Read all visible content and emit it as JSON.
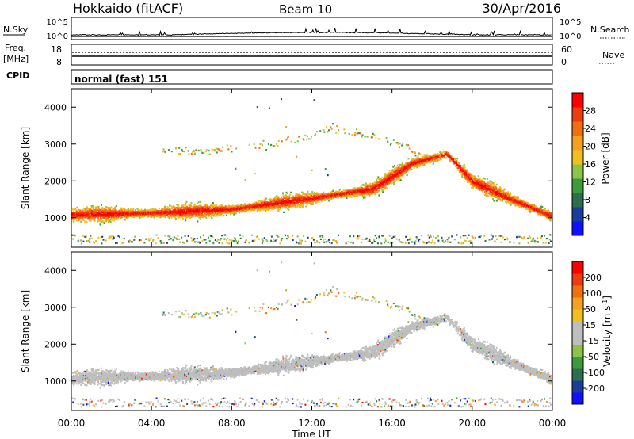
{
  "header": {
    "station": "Hokkaido (fitACF)",
    "beam": "Beam 10",
    "date": "30/Apr/2016"
  },
  "top_panels": {
    "nsky_label": "N.Sky",
    "nsky_tick_top": "10^5",
    "nsky_tick_bottom": "10^0",
    "nsearch_label": "N.Search",
    "nsearch_tick_top": "10^5",
    "nsearch_tick_bottom": "10^0",
    "freq_label": "Freq.",
    "freq_unit": "[MHz]",
    "freq_ticks": [
      "18",
      "8"
    ],
    "nave_label": "Nave",
    "nave_ticks": [
      "60",
      "0"
    ],
    "cpid_label": "CPID",
    "cpid_value": "normal (fast) 151"
  },
  "chart_data": [
    {
      "type": "heatmap",
      "name": "power",
      "ylabel": "Slant Range [km]",
      "ylim": [
        200,
        4500
      ],
      "yticks": [
        1000,
        2000,
        3000,
        4000
      ],
      "xlim": [
        0,
        24
      ],
      "xticks": [
        "00:00",
        "04:00",
        "08:00",
        "12:00",
        "16:00",
        "20:00",
        "00:00"
      ],
      "xlabel": "Time UT",
      "colorbar": {
        "label": "Power [dB]",
        "ticks": [
          "4",
          "8",
          "12",
          "16",
          "20",
          "24",
          "28"
        ],
        "colors": [
          "#1010ff",
          "#1c3c9c",
          "#2d6e4e",
          "#3d9a3d",
          "#8cc44a",
          "#f0c020",
          "#f5a020",
          "#f07010",
          "#ee3c10",
          "#ff0000"
        ]
      },
      "main_band_km": [
        [
          0,
          1100
        ],
        [
          4,
          1150
        ],
        [
          8,
          1250
        ],
        [
          12,
          1550
        ],
        [
          15,
          1800
        ],
        [
          17,
          2500
        ],
        [
          18.7,
          2750
        ],
        [
          20,
          2000
        ],
        [
          22,
          1500
        ],
        [
          24,
          1050
        ]
      ],
      "upper_echo_km": [
        [
          5,
          2850
        ],
        [
          8,
          2850
        ],
        [
          11,
          3100
        ],
        [
          13,
          3450
        ],
        [
          16,
          3100
        ],
        [
          18,
          2600
        ]
      ]
    },
    {
      "type": "heatmap",
      "name": "velocity",
      "ylabel": "Slant Range [km]",
      "ylim": [
        200,
        4500
      ],
      "yticks": [
        1000,
        2000,
        3000,
        4000
      ],
      "xlim": [
        0,
        24
      ],
      "xticks": [
        "00:00",
        "04:00",
        "08:00",
        "12:00",
        "16:00",
        "20:00",
        "00:00"
      ],
      "xlabel": "Time UT",
      "colorbar": {
        "label": "Velocity [m s",
        "label_sup": "-1",
        "label_end": "]",
        "ticks": [
          "200",
          "100",
          "50",
          "15",
          "-15",
          "-50",
          "-100",
          "-200"
        ],
        "colors": [
          "#1010ff",
          "#1c3c9c",
          "#2d6e4e",
          "#3d9a3d",
          "#8cc44a",
          "#bebebe",
          "#bebebe",
          "#f0c020",
          "#f5a020",
          "#f07010",
          "#ee3c10",
          "#ff0000"
        ]
      }
    }
  ]
}
